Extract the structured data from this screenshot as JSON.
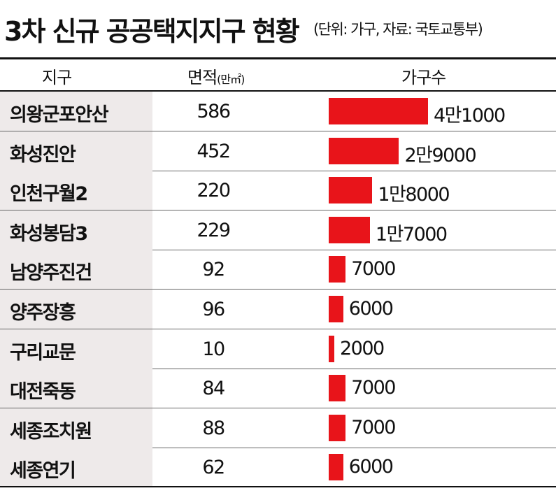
{
  "title": "3차 신규 공공택지지구 현황",
  "subtitle": "(단위: 가구, 자료: 국토교통부)",
  "header": {
    "district": "지구",
    "area": "면적",
    "area_unit": "(만㎡)",
    "households": "가구수"
  },
  "colors": {
    "bar": "#e8141a",
    "name_cell": "#eeeaea"
  },
  "chart_data": {
    "type": "table",
    "title": "3차 신규 공공택지지구 현황",
    "subtitle": "(단위: 가구, 자료: 국토교통부)",
    "columns": [
      "지구",
      "면적(만㎡)",
      "가구수"
    ],
    "rows": [
      {
        "name": "의왕군포안산",
        "area": 586,
        "households": 41000,
        "households_label": "4만1000"
      },
      {
        "name": "화성진안",
        "area": 452,
        "households": 29000,
        "households_label": "2만9000"
      },
      {
        "name": "인천구월2",
        "area": 220,
        "households": 18000,
        "households_label": "1만8000"
      },
      {
        "name": "화성봉담3",
        "area": 229,
        "households": 17000,
        "households_label": "1만7000"
      },
      {
        "name": "남양주진건",
        "area": 92,
        "households": 7000,
        "households_label": "7000"
      },
      {
        "name": "양주장흥",
        "area": 96,
        "households": 6000,
        "households_label": "6000"
      },
      {
        "name": "구리교문",
        "area": 10,
        "households": 2000,
        "households_label": "2000"
      },
      {
        "name": "대전죽동",
        "area": 84,
        "households": 7000,
        "households_label": "7000"
      },
      {
        "name": "세종조치원",
        "area": 88,
        "households": 7000,
        "households_label": "7000"
      },
      {
        "name": "세종연기",
        "area": 62,
        "households": 6000,
        "households_label": "6000"
      }
    ]
  }
}
